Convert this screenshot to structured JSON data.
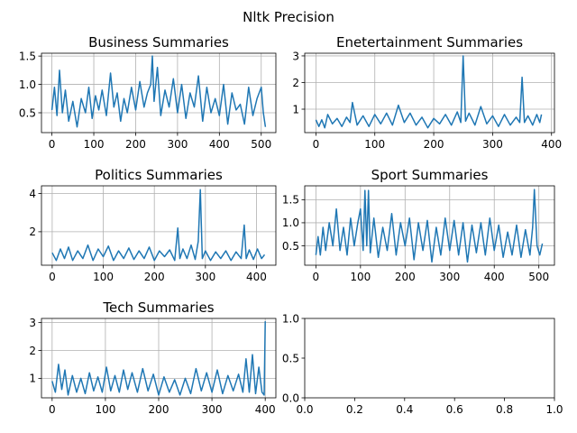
{
  "figure": {
    "title": "Nltk Precision",
    "colors": {
      "series": "#1f77b4",
      "grid": "#b0b0b0",
      "axis": "#000000",
      "background": "#ffffff"
    }
  },
  "chart_data": [
    {
      "type": "line",
      "title": "Business Summaries",
      "xlabel": "",
      "ylabel": "",
      "grid": true,
      "xlim": [
        -25,
        535
      ],
      "ylim": [
        0.15,
        1.55
      ],
      "xticks": [
        0,
        100,
        200,
        300,
        400,
        500
      ],
      "yticks": [
        0.5,
        1.0,
        1.5
      ],
      "ytick_labels": [
        "0.5",
        "1.0",
        "1.5"
      ],
      "series": [
        {
          "x": [
            0,
            6,
            12,
            18,
            25,
            32,
            40,
            50,
            60,
            70,
            80,
            88,
            96,
            104,
            112,
            120,
            130,
            140,
            148,
            156,
            164,
            172,
            180,
            190,
            200,
            210,
            220,
            228,
            236,
            240,
            244,
            252,
            260,
            270,
            280,
            290,
            300,
            310,
            320,
            330,
            340,
            350,
            360,
            370,
            380,
            390,
            400,
            410,
            420,
            430,
            440,
            450,
            460,
            470,
            480,
            490,
            500,
            505,
            510
          ],
          "y": [
            0.55,
            0.95,
            0.45,
            1.25,
            0.5,
            0.9,
            0.35,
            0.7,
            0.25,
            0.75,
            0.5,
            0.95,
            0.4,
            0.8,
            0.55,
            0.9,
            0.45,
            1.2,
            0.6,
            0.85,
            0.35,
            0.75,
            0.5,
            0.95,
            0.55,
            1.05,
            0.6,
            0.85,
            1.0,
            1.5,
            0.7,
            1.3,
            0.45,
            0.9,
            0.6,
            1.1,
            0.5,
            1.0,
            0.4,
            0.85,
            0.6,
            1.15,
            0.35,
            0.95,
            0.5,
            0.75,
            0.45,
            1.0,
            0.3,
            0.85,
            0.55,
            0.65,
            0.3,
            0.95,
            0.45,
            0.75,
            0.95,
            0.5,
            0.25
          ]
        }
      ]
    },
    {
      "type": "line",
      "title": "Enetertainment Summaries",
      "xlabel": "",
      "ylabel": "",
      "grid": true,
      "xlim": [
        -19,
        405
      ],
      "ylim": [
        0.12,
        3.1
      ],
      "xticks": [
        0,
        100,
        200,
        300,
        400
      ],
      "yticks": [
        1,
        2,
        3
      ],
      "ytick_labels": [
        "1",
        "2",
        "3"
      ],
      "series": [
        {
          "x": [
            0,
            5,
            10,
            15,
            20,
            28,
            36,
            44,
            52,
            58,
            62,
            70,
            80,
            90,
            100,
            110,
            120,
            130,
            140,
            150,
            160,
            170,
            180,
            190,
            200,
            210,
            220,
            230,
            240,
            246,
            250,
            254,
            260,
            270,
            280,
            290,
            300,
            310,
            320,
            330,
            340,
            346,
            350,
            354,
            360,
            368,
            375,
            380,
            383
          ],
          "y": [
            0.6,
            0.35,
            0.6,
            0.3,
            0.8,
            0.45,
            0.65,
            0.35,
            0.7,
            0.5,
            1.25,
            0.4,
            0.75,
            0.35,
            0.8,
            0.45,
            0.85,
            0.4,
            1.15,
            0.5,
            0.85,
            0.4,
            0.7,
            0.3,
            0.65,
            0.45,
            0.8,
            0.4,
            0.9,
            0.5,
            3.0,
            0.55,
            0.85,
            0.4,
            1.1,
            0.45,
            0.75,
            0.35,
            0.8,
            0.4,
            0.7,
            0.5,
            2.2,
            0.5,
            0.75,
            0.4,
            0.8,
            0.5,
            0.8
          ]
        }
      ]
    },
    {
      "type": "line",
      "title": "Politics Summaries",
      "xlabel": "",
      "ylabel": "",
      "grid": true,
      "xlim": [
        -21,
        438
      ],
      "ylim": [
        0.25,
        4.4
      ],
      "xticks": [
        0,
        100,
        200,
        300,
        400
      ],
      "yticks": [
        2,
        4
      ],
      "ytick_labels": [
        "2",
        "4"
      ],
      "series": [
        {
          "x": [
            0,
            8,
            16,
            24,
            32,
            40,
            50,
            60,
            70,
            80,
            90,
            100,
            110,
            120,
            130,
            140,
            150,
            160,
            170,
            180,
            190,
            200,
            210,
            220,
            230,
            240,
            246,
            250,
            256,
            264,
            272,
            280,
            286,
            290,
            294,
            300,
            310,
            320,
            330,
            340,
            350,
            360,
            370,
            376,
            380,
            386,
            394,
            402,
            410,
            416
          ],
          "y": [
            0.9,
            0.5,
            1.1,
            0.6,
            1.2,
            0.5,
            1.0,
            0.6,
            1.3,
            0.5,
            1.1,
            0.7,
            1.25,
            0.5,
            1.0,
            0.6,
            1.15,
            0.55,
            1.0,
            0.6,
            1.2,
            0.5,
            1.0,
            0.7,
            1.05,
            0.5,
            2.2,
            0.6,
            1.1,
            0.6,
            1.3,
            0.55,
            1.5,
            4.2,
            0.6,
            1.0,
            0.5,
            0.95,
            0.6,
            1.0,
            0.5,
            0.95,
            0.6,
            2.35,
            0.6,
            1.05,
            0.55,
            1.1,
            0.6,
            0.8
          ]
        }
      ]
    },
    {
      "type": "line",
      "title": "Sport Summaries",
      "xlabel": "",
      "ylabel": "",
      "grid": true,
      "xlim": [
        -25,
        535
      ],
      "ylim": [
        0.08,
        1.8
      ],
      "xticks": [
        0,
        100,
        200,
        300,
        400,
        500
      ],
      "yticks": [
        0.5,
        1.0,
        1.5
      ],
      "ytick_labels": [
        "0.5",
        "1.0",
        "1.5"
      ],
      "series": [
        {
          "x": [
            0,
            5,
            10,
            16,
            22,
            30,
            38,
            46,
            54,
            62,
            70,
            78,
            86,
            94,
            100,
            106,
            110,
            114,
            118,
            122,
            130,
            140,
            150,
            160,
            170,
            180,
            190,
            200,
            210,
            220,
            230,
            240,
            250,
            260,
            270,
            280,
            290,
            300,
            310,
            320,
            330,
            340,
            350,
            360,
            370,
            380,
            390,
            400,
            410,
            420,
            430,
            440,
            450,
            460,
            470,
            480,
            486,
            490,
            496,
            502,
            508
          ],
          "y": [
            0.3,
            0.7,
            0.3,
            0.9,
            0.4,
            1.0,
            0.5,
            1.3,
            0.4,
            0.9,
            0.3,
            1.1,
            0.5,
            1.0,
            1.3,
            0.4,
            1.7,
            0.5,
            1.7,
            0.35,
            1.1,
            0.25,
            0.9,
            0.4,
            1.2,
            0.3,
            1.0,
            0.5,
            1.1,
            0.2,
            1.0,
            0.4,
            1.05,
            0.15,
            0.9,
            0.3,
            1.1,
            0.4,
            1.05,
            0.3,
            1.0,
            0.15,
            0.95,
            0.35,
            1.0,
            0.3,
            1.1,
            0.4,
            0.95,
            0.25,
            0.8,
            0.3,
            0.95,
            0.25,
            0.85,
            0.3,
            0.9,
            1.72,
            0.5,
            0.3,
            0.55
          ]
        }
      ]
    },
    {
      "type": "line",
      "title": "Tech Summaries",
      "xlabel": "",
      "ylabel": "",
      "grid": true,
      "xlim": [
        -20,
        420
      ],
      "ylim": [
        0.3,
        3.15
      ],
      "xticks": [
        0,
        100,
        200,
        300,
        400
      ],
      "yticks": [
        1,
        2,
        3
      ],
      "ytick_labels": [
        "1",
        "2",
        "3"
      ],
      "series": [
        {
          "x": [
            0,
            6,
            12,
            18,
            24,
            30,
            38,
            46,
            54,
            62,
            70,
            78,
            86,
            94,
            102,
            110,
            118,
            126,
            134,
            142,
            150,
            160,
            170,
            180,
            190,
            200,
            210,
            220,
            230,
            240,
            250,
            260,
            270,
            280,
            290,
            300,
            310,
            320,
            330,
            340,
            350,
            358,
            364,
            370,
            376,
            382,
            388,
            394,
            398,
            400
          ],
          "y": [
            0.9,
            0.5,
            1.5,
            0.6,
            1.3,
            0.4,
            1.1,
            0.5,
            1.0,
            0.45,
            1.2,
            0.55,
            1.05,
            0.5,
            1.4,
            0.55,
            1.1,
            0.5,
            1.3,
            0.6,
            1.2,
            0.5,
            1.35,
            0.55,
            1.15,
            0.4,
            1.05,
            0.5,
            0.95,
            0.4,
            1.0,
            0.45,
            1.35,
            0.55,
            1.2,
            0.5,
            1.3,
            0.45,
            1.1,
            0.55,
            1.15,
            0.5,
            1.7,
            0.5,
            1.85,
            0.45,
            1.4,
            0.5,
            0.4,
            3.05
          ]
        }
      ]
    },
    {
      "type": "line",
      "title": "",
      "xlabel": "",
      "ylabel": "",
      "grid": false,
      "xlim": [
        0,
        1
      ],
      "ylim": [
        0,
        1
      ],
      "xticks": [
        0,
        0.2,
        0.4,
        0.6,
        0.8,
        1.0
      ],
      "xtick_labels": [
        "0.0",
        "0.2",
        "0.4",
        "0.6",
        "0.8",
        "1.0"
      ],
      "yticks": [
        0,
        0.5,
        1.0
      ],
      "ytick_labels": [
        "0.0",
        "0.5",
        "1.0"
      ],
      "series": []
    }
  ]
}
